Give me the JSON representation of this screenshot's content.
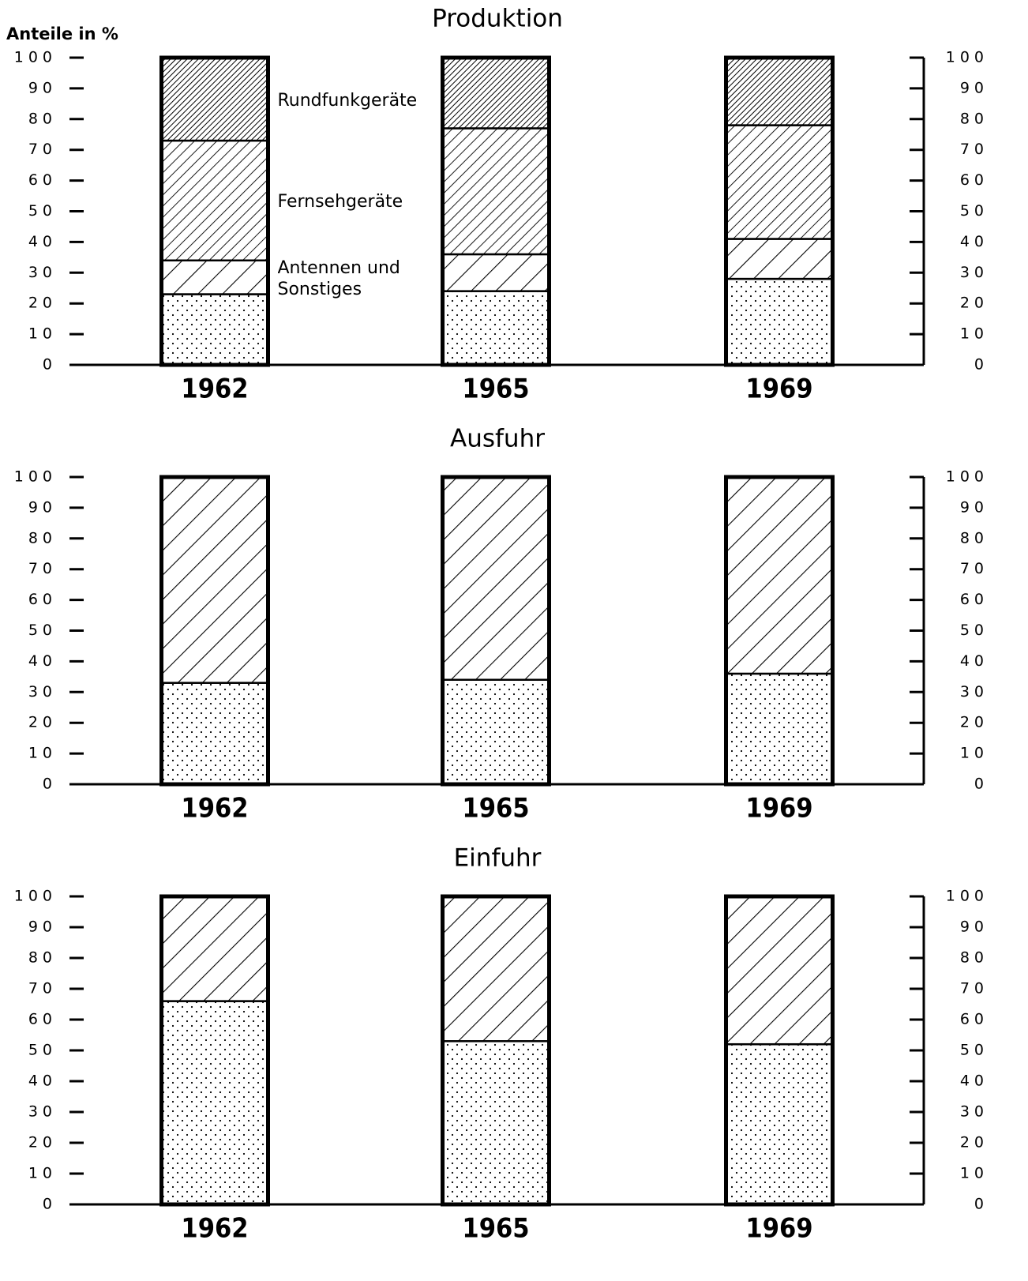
{
  "chart_data": [
    {
      "type": "bar",
      "stacked": true,
      "title": "Produktion",
      "y_label": "Anteile in %",
      "categories": [
        "1962",
        "1965",
        "1969"
      ],
      "series": [
        {
          "pattern": "dots",
          "values": [
            23,
            24,
            28
          ]
        },
        {
          "name": "Antennen und Sonstiges",
          "pattern": "hatch-wide",
          "values": [
            11,
            12,
            13
          ]
        },
        {
          "name": "Fernsehgeräte",
          "pattern": "hatch-fine",
          "values": [
            39,
            41,
            37
          ]
        },
        {
          "name": "Rundfunkgeräte",
          "pattern": "hatch-dense",
          "values": [
            27,
            23,
            22
          ]
        }
      ],
      "ylim": [
        0,
        100
      ],
      "yticks": [
        0,
        10,
        20,
        30,
        40,
        50,
        60,
        70,
        80,
        90,
        100
      ]
    },
    {
      "type": "bar",
      "stacked": true,
      "title": "Ausfuhr",
      "categories": [
        "1962",
        "1965",
        "1969"
      ],
      "series": [
        {
          "pattern": "dots",
          "values": [
            33,
            34,
            36
          ]
        },
        {
          "pattern": "hatch-wide",
          "values": [
            67,
            66,
            64
          ]
        }
      ],
      "ylim": [
        0,
        100
      ],
      "yticks": [
        0,
        10,
        20,
        30,
        40,
        50,
        60,
        70,
        80,
        90,
        100
      ]
    },
    {
      "type": "bar",
      "stacked": true,
      "title": "Einfuhr",
      "categories": [
        "1962",
        "1965",
        "1969"
      ],
      "series": [
        {
          "pattern": "dots",
          "values": [
            66,
            53,
            52
          ]
        },
        {
          "pattern": "hatch-wide",
          "values": [
            34,
            47,
            48
          ]
        }
      ],
      "ylim": [
        0,
        100
      ],
      "yticks": [
        0,
        10,
        20,
        30,
        40,
        50,
        60,
        70,
        80,
        90,
        100
      ]
    }
  ]
}
